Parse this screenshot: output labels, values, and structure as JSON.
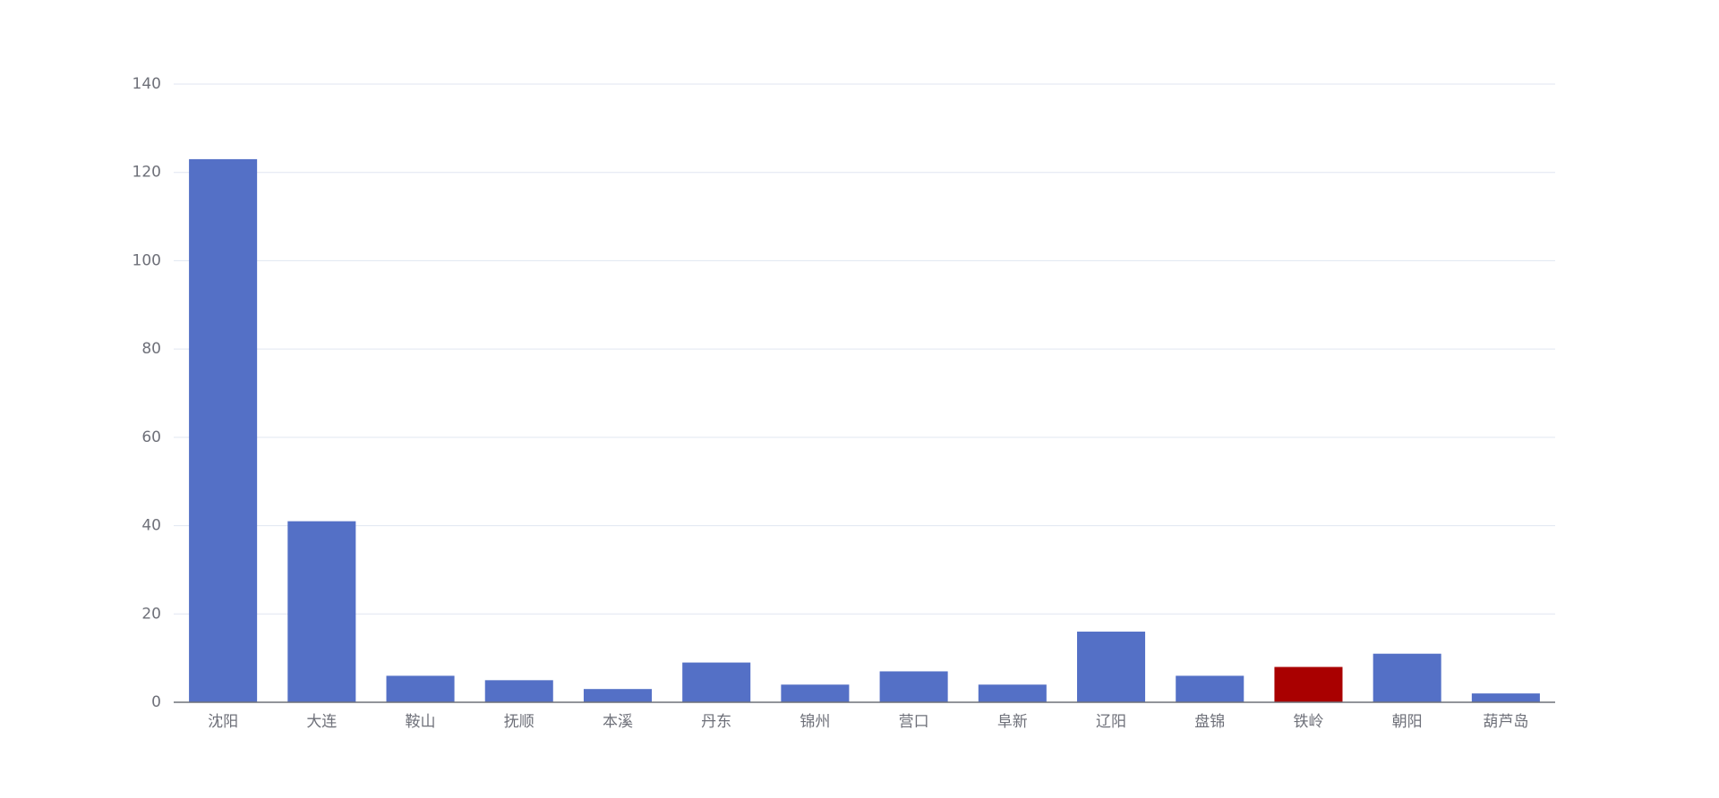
{
  "chart_data": {
    "type": "bar",
    "categories": [
      "沈阳",
      "大连",
      "鞍山",
      "抚顺",
      "本溪",
      "丹东",
      "锦州",
      "营口",
      "阜新",
      "辽阳",
      "盘锦",
      "铁岭",
      "朝阳",
      "葫芦岛"
    ],
    "values": [
      123,
      41,
      6,
      5,
      3,
      9,
      4,
      7,
      4,
      16,
      6,
      8,
      11,
      2
    ],
    "colors": [
      "#5470c6",
      "#5470c6",
      "#5470c6",
      "#5470c6",
      "#5470c6",
      "#5470c6",
      "#5470c6",
      "#5470c6",
      "#5470c6",
      "#5470c6",
      "#5470c6",
      "#a90000",
      "#5470c6",
      "#5470c6"
    ],
    "ylim": [
      0,
      140
    ],
    "yticks": [
      0,
      20,
      40,
      60,
      80,
      100,
      120,
      140
    ],
    "grid": true
  }
}
